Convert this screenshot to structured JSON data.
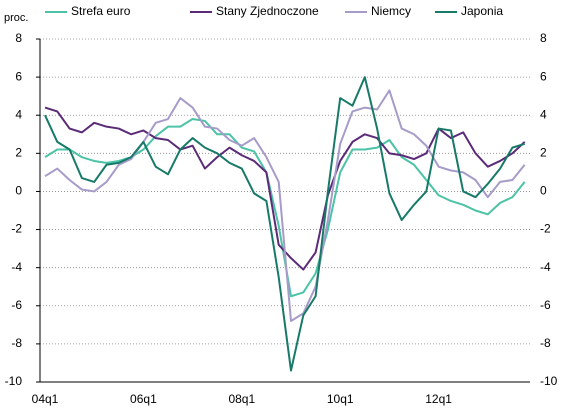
{
  "chart_data": {
    "type": "line",
    "y_label": "proc.",
    "categories": [
      "04q1",
      null,
      null,
      null,
      null,
      null,
      null,
      null,
      "06q1",
      null,
      null,
      null,
      null,
      null,
      null,
      null,
      "08q1",
      null,
      null,
      null,
      null,
      null,
      null,
      null,
      "10q1",
      null,
      null,
      null,
      null,
      null,
      null,
      null,
      "12q1",
      null,
      null,
      null,
      null,
      null,
      null,
      null
    ],
    "series": [
      {
        "name": "Strefa euro",
        "color": "#4cc3a6",
        "values": [
          1.8,
          2.2,
          2.2,
          1.8,
          1.6,
          1.5,
          1.6,
          1.8,
          2.2,
          2.9,
          3.4,
          3.4,
          3.8,
          3.7,
          3.0,
          3.0,
          2.3,
          2.1,
          1.0,
          -1.8,
          -5.5,
          -5.3,
          -4.3,
          -2.0,
          1.0,
          2.2,
          2.2,
          2.3,
          2.7,
          1.8,
          1.4,
          0.6,
          -0.2,
          -0.5,
          -0.7,
          -1.0,
          -1.2,
          -0.6,
          -0.3,
          0.5
        ]
      },
      {
        "name": "Stany Zjednoczone",
        "color": "#5b2b78",
        "values": [
          4.4,
          4.2,
          3.3,
          3.1,
          3.6,
          3.4,
          3.3,
          3.0,
          3.2,
          2.8,
          2.7,
          2.2,
          2.4,
          1.2,
          1.8,
          2.3,
          1.9,
          1.6,
          1.0,
          -2.8,
          -3.5,
          -4.1,
          -3.2,
          -0.2,
          1.6,
          2.6,
          3.0,
          2.8,
          2.0,
          1.9,
          1.7,
          2.0,
          3.3,
          2.8,
          3.1,
          2.0,
          1.3,
          1.6,
          2.0,
          2.6
        ]
      },
      {
        "name": "Niemcy",
        "color": "#a79bc9",
        "values": [
          0.8,
          1.2,
          0.6,
          0.1,
          0.0,
          0.5,
          1.4,
          1.7,
          2.6,
          3.6,
          3.8,
          4.9,
          4.4,
          3.4,
          3.3,
          2.7,
          2.4,
          2.8,
          1.8,
          0.5,
          -6.8,
          -6.4,
          -5.0,
          -1.5,
          2.5,
          4.2,
          4.4,
          4.3,
          5.3,
          3.3,
          3.0,
          2.4,
          1.3,
          1.1,
          1.0,
          0.6,
          -0.3,
          0.5,
          0.6,
          1.4
        ]
      },
      {
        "name": "Japonia",
        "color": "#177a68",
        "values": [
          4.0,
          2.6,
          2.2,
          0.7,
          0.5,
          1.4,
          1.5,
          1.8,
          2.6,
          1.3,
          0.9,
          2.2,
          2.8,
          2.3,
          2.0,
          1.5,
          1.2,
          -0.1,
          -0.5,
          -4.5,
          -9.4,
          -6.5,
          -5.5,
          0.0,
          4.9,
          4.5,
          6.0,
          3.3,
          -0.1,
          -1.5,
          -0.7,
          0.0,
          3.3,
          3.2,
          0.0,
          -0.3,
          0.4,
          1.2,
          2.3,
          2.5
        ]
      }
    ],
    "ylim": [
      -10,
      8
    ],
    "yticks": [
      -10,
      -8,
      -6,
      -4,
      -2,
      0,
      2,
      4,
      6,
      8
    ],
    "grid": true
  }
}
